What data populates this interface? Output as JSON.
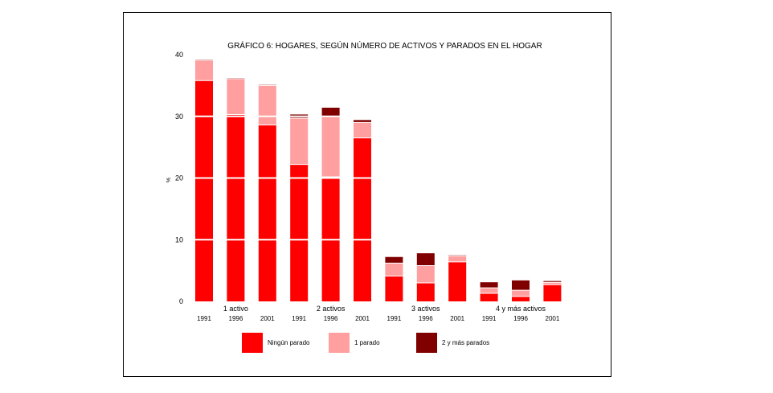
{
  "chart_data": {
    "type": "bar",
    "stacked": true,
    "title": "GRÁFICO 6: HOGARES, SEGÚN NÚMERO DE ACTIVOS Y PARADOS EN EL HOGAR",
    "ylabel": "%",
    "xlabel": "",
    "ylim": [
      0,
      40
    ],
    "yticks": [
      0,
      10,
      20,
      30,
      40
    ],
    "grid": "horizontal white lines",
    "legend_position": "bottom",
    "groups": [
      "1 activo",
      "2 activos",
      "3 activos",
      "4 y más activos"
    ],
    "categories": [
      "1991",
      "1996",
      "2001",
      "1991",
      "1996",
      "2001",
      "1991",
      "1996",
      "2001",
      "1991",
      "1996",
      "2001"
    ],
    "series": [
      {
        "name": "Ningún parado",
        "color": "#ff0000",
        "values": [
          35.8,
          30.3,
          28.6,
          22.2,
          20.2,
          26.5,
          4.1,
          3.0,
          6.4,
          1.3,
          0.8,
          2.7
        ]
      },
      {
        "name": "1 parado",
        "color": "#ff9f9f",
        "values": [
          3.3,
          5.8,
          6.4,
          7.5,
          9.8,
          2.5,
          2.1,
          2.8,
          1.0,
          0.9,
          1.0,
          0.4
        ]
      },
      {
        "name": "2 y más parados",
        "color": "#800000",
        "values": [
          0.1,
          0.1,
          0.1,
          0.6,
          1.4,
          0.4,
          1.0,
          2.0,
          0.1,
          0.9,
          1.6,
          0.2
        ]
      }
    ]
  }
}
